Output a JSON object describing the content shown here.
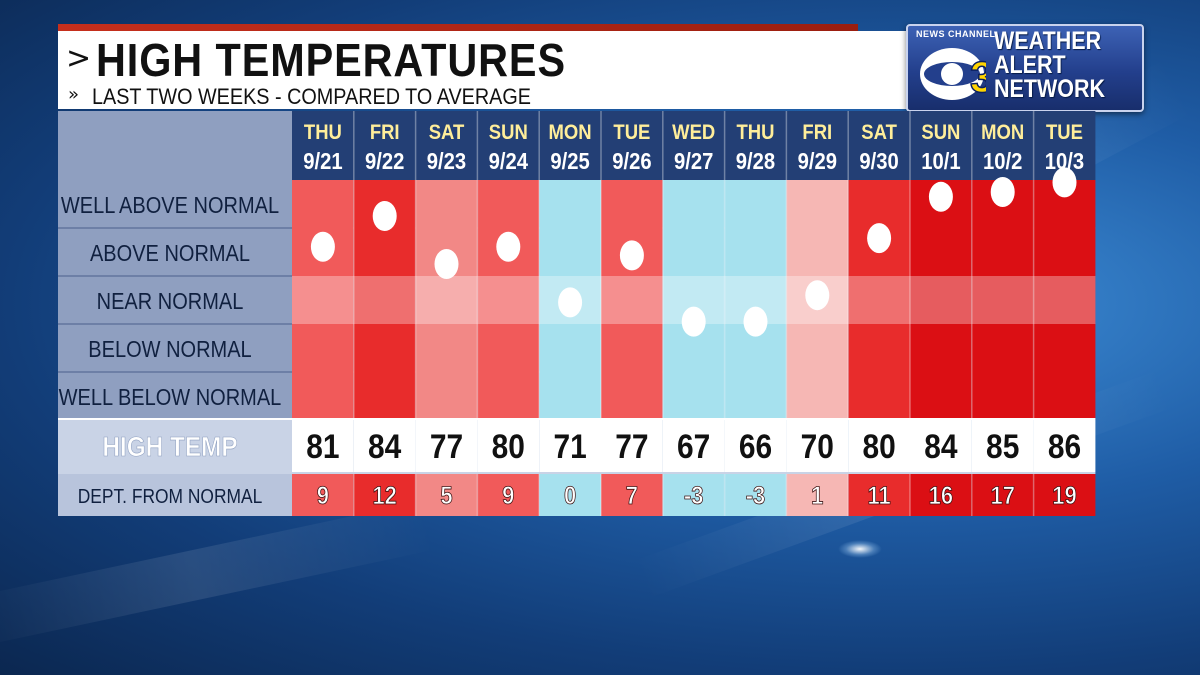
{
  "header": {
    "title": "HIGH TEMPERATURES",
    "subtitle": "LAST TWO WEEKS - COMPARED TO AVERAGE",
    "title_chevron": ">",
    "subtitle_chevron": "»"
  },
  "logo": {
    "small_text": "NEWS CHANNEL",
    "number": "3",
    "line1": "WEATHER",
    "line2": "ALERT",
    "line3": "NETWORK"
  },
  "chart_data": {
    "type": "table",
    "categories": [
      "WELL ABOVE NORMAL",
      "ABOVE NORMAL",
      "NEAR NORMAL",
      "BELOW NORMAL",
      "WELL BELOW NORMAL"
    ],
    "row_labels": {
      "high_temp": "HIGH TEMP",
      "departure": "DEPT. FROM NORMAL"
    },
    "days": [
      {
        "dow": "THU",
        "date": "9/21",
        "high": "81",
        "dept": "9",
        "bucket": "above"
      },
      {
        "dow": "FRI",
        "date": "9/22",
        "high": "84",
        "dept": "12",
        "bucket": "well_above"
      },
      {
        "dow": "SAT",
        "date": "9/23",
        "high": "77",
        "dept": "5",
        "bucket": "above"
      },
      {
        "dow": "SUN",
        "date": "9/24",
        "high": "80",
        "dept": "9",
        "bucket": "above"
      },
      {
        "dow": "MON",
        "date": "9/25",
        "high": "71",
        "dept": "0",
        "bucket": "near"
      },
      {
        "dow": "TUE",
        "date": "9/26",
        "high": "77",
        "dept": "7",
        "bucket": "above"
      },
      {
        "dow": "WED",
        "date": "9/27",
        "high": "67",
        "dept": "-3",
        "bucket": "near"
      },
      {
        "dow": "THU",
        "date": "9/28",
        "high": "66",
        "dept": "-3",
        "bucket": "near"
      },
      {
        "dow": "FRI",
        "date": "9/29",
        "high": "70",
        "dept": "1",
        "bucket": "near"
      },
      {
        "dow": "SAT",
        "date": "9/30",
        "high": "80",
        "dept": "11",
        "bucket": "above"
      },
      {
        "dow": "SUN",
        "date": "10/1",
        "high": "84",
        "dept": "16",
        "bucket": "well_above"
      },
      {
        "dow": "MON",
        "date": "10/2",
        "high": "85",
        "dept": "17",
        "bucket": "well_above"
      },
      {
        "dow": "TUE",
        "date": "10/3",
        "high": "86",
        "dept": "19",
        "bucket": "well_above"
      }
    ],
    "colors": {
      "cool": "#a6e1ee",
      "neutral_warm": "#f6b7b4",
      "warm": "#f28886",
      "hot": "#f15a5a",
      "very_hot": "#e82c2c",
      "extreme": "#db0f14",
      "near_band": "#f6c6c4",
      "label_panel": "#8f9fc0",
      "header_row": "#233f75",
      "day_text": "#ffee9a"
    }
  }
}
